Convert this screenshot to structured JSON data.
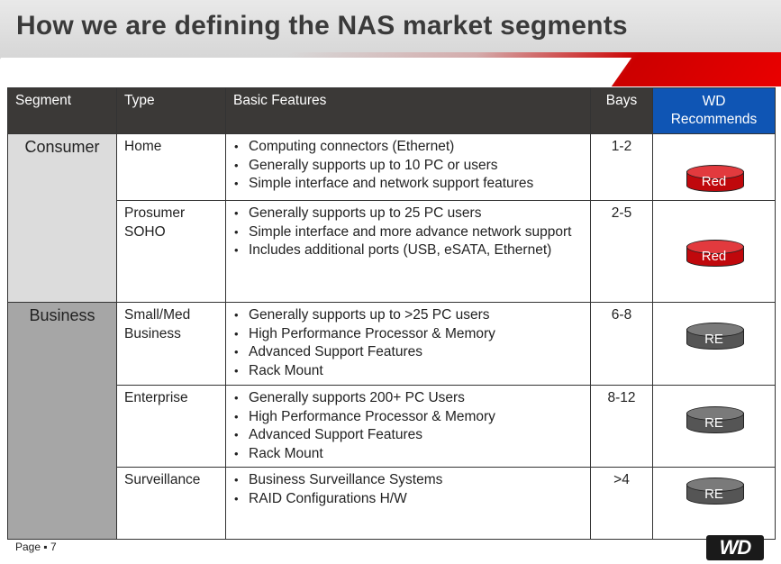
{
  "title": "How we are defining the NAS market segments",
  "headers": {
    "segment": "Segment",
    "type": "Type",
    "features": "Basic Features",
    "bays": "Bays",
    "wd_line1": "WD",
    "wd_line2": "Recommends"
  },
  "segments": {
    "consumer": "Consumer",
    "business": "Business"
  },
  "rows": [
    {
      "type_lines": [
        "Home"
      ],
      "features": [
        "Computing connectors (Ethernet)",
        "Generally supports up to 10 PC or users",
        "Simple interface and network support features"
      ],
      "bays": "1-2",
      "recommend": "Red"
    },
    {
      "type_lines": [
        "Prosumer",
        "SOHO"
      ],
      "features": [
        "Generally supports up to 25 PC users",
        "Simple interface and more advance network support",
        "Includes additional ports (USB, eSATA, Ethernet)"
      ],
      "bays": "2-5",
      "recommend": "Red"
    },
    {
      "type_lines": [
        "Small/Med",
        "Business"
      ],
      "features": [
        "Generally supports up to >25 PC users",
        "High Performance Processor & Memory",
        "Advanced Support Features",
        "Rack Mount"
      ],
      "bays": "6-8",
      "recommend": "RE"
    },
    {
      "type_lines": [
        "Enterprise"
      ],
      "features": [
        "Generally supports 200+ PC Users",
        "High Performance Processor & Memory",
        "Advanced Support Features",
        "Rack Mount"
      ],
      "bays": "8-12",
      "recommend": "RE"
    },
    {
      "type_lines": [
        "Surveillance"
      ],
      "features": [
        "Business Surveillance Systems",
        "RAID Configurations H/W"
      ],
      "bays": ">4",
      "recommend": "RE"
    }
  ],
  "colors": {
    "header_bg": "#3b3937",
    "wd_header_bg": "#0f55b4",
    "red_drive": "#c0080c",
    "re_drive": "#555555",
    "consumer_bg": "#dcdcdc",
    "business_bg": "#a6a6a6"
  },
  "footer": {
    "page": "Page ▪ 7",
    "logo_text": "WD"
  }
}
